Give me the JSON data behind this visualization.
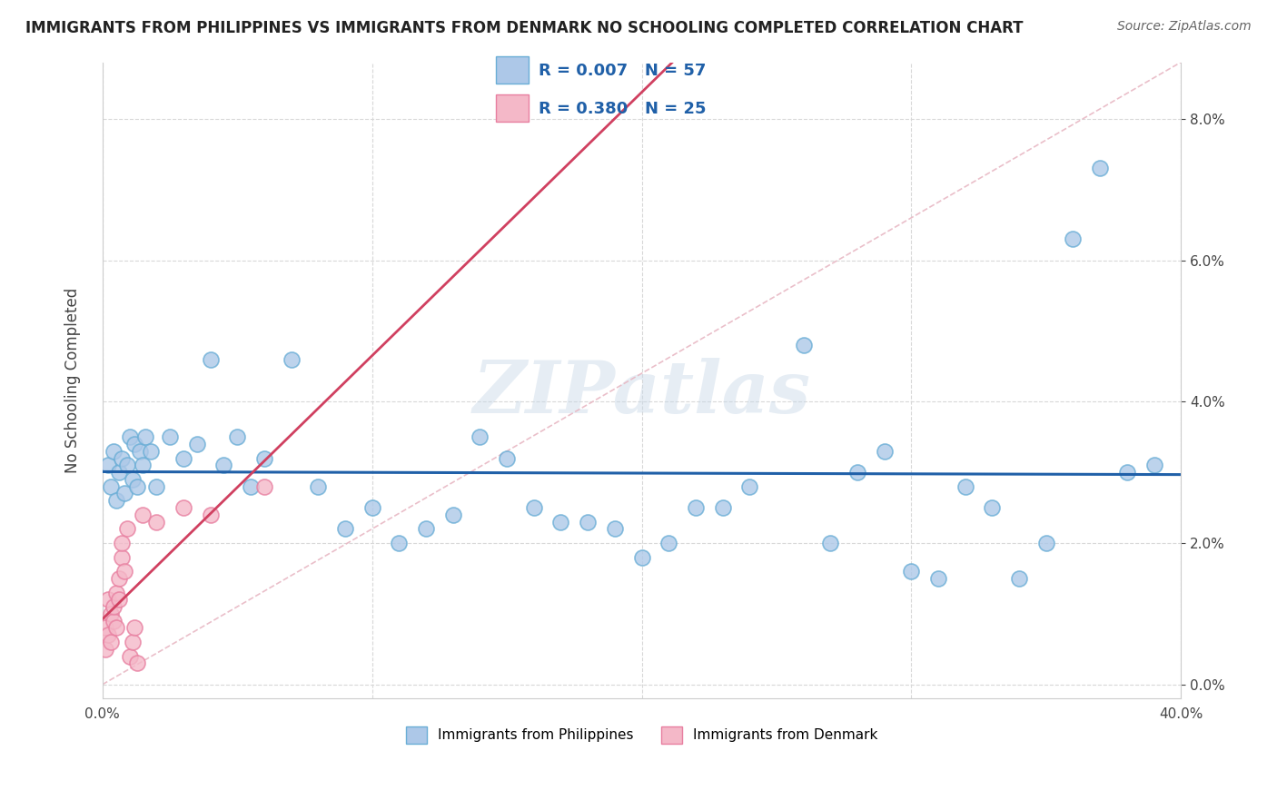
{
  "title": "IMMIGRANTS FROM PHILIPPINES VS IMMIGRANTS FROM DENMARK NO SCHOOLING COMPLETED CORRELATION CHART",
  "source": "Source: ZipAtlas.com",
  "ylabel": "No Schooling Completed",
  "xlim": [
    0.0,
    0.4
  ],
  "ylim": [
    -0.002,
    0.088
  ],
  "xticks": [
    0.0,
    0.1,
    0.2,
    0.3,
    0.4
  ],
  "yticks": [
    0.0,
    0.02,
    0.04,
    0.06,
    0.08
  ],
  "philippines_color": "#adc8e8",
  "philippines_edge": "#6aaed6",
  "denmark_color": "#f4b8c8",
  "denmark_edge": "#e87fa0",
  "philippines_R": 0.007,
  "philippines_N": 57,
  "denmark_R": 0.38,
  "denmark_N": 25,
  "phil_trend_color": "#2060a8",
  "den_trend_color": "#d04060",
  "diag_color": "#c8c0c8",
  "watermark": "ZIPatlas",
  "background_color": "#ffffff",
  "grid_color": "#d8d8d8",
  "legend_R_N_color": "#2060a8",
  "philippines_x": [
    0.002,
    0.003,
    0.004,
    0.005,
    0.006,
    0.007,
    0.008,
    0.009,
    0.01,
    0.011,
    0.012,
    0.013,
    0.014,
    0.015,
    0.016,
    0.018,
    0.02,
    0.025,
    0.03,
    0.035,
    0.04,
    0.045,
    0.05,
    0.055,
    0.06,
    0.07,
    0.08,
    0.09,
    0.1,
    0.11,
    0.12,
    0.13,
    0.14,
    0.15,
    0.16,
    0.17,
    0.18,
    0.19,
    0.2,
    0.21,
    0.22,
    0.23,
    0.24,
    0.26,
    0.27,
    0.28,
    0.29,
    0.3,
    0.31,
    0.32,
    0.33,
    0.34,
    0.35,
    0.36,
    0.37,
    0.38,
    0.39
  ],
  "philippines_y": [
    0.031,
    0.028,
    0.033,
    0.026,
    0.03,
    0.032,
    0.027,
    0.031,
    0.035,
    0.029,
    0.034,
    0.028,
    0.033,
    0.031,
    0.035,
    0.033,
    0.028,
    0.035,
    0.032,
    0.034,
    0.046,
    0.031,
    0.035,
    0.028,
    0.032,
    0.046,
    0.028,
    0.022,
    0.025,
    0.02,
    0.022,
    0.024,
    0.035,
    0.032,
    0.025,
    0.023,
    0.023,
    0.022,
    0.018,
    0.02,
    0.025,
    0.025,
    0.028,
    0.048,
    0.02,
    0.03,
    0.033,
    0.016,
    0.015,
    0.028,
    0.025,
    0.015,
    0.02,
    0.063,
    0.073,
    0.03,
    0.031
  ],
  "denmark_x": [
    0.001,
    0.001,
    0.002,
    0.002,
    0.003,
    0.003,
    0.004,
    0.004,
    0.005,
    0.005,
    0.006,
    0.006,
    0.007,
    0.007,
    0.008,
    0.009,
    0.01,
    0.011,
    0.012,
    0.013,
    0.015,
    0.02,
    0.03,
    0.04,
    0.06
  ],
  "denmark_y": [
    0.008,
    0.005,
    0.012,
    0.007,
    0.01,
    0.006,
    0.009,
    0.011,
    0.008,
    0.013,
    0.015,
    0.012,
    0.018,
    0.02,
    0.016,
    0.022,
    0.004,
    0.006,
    0.008,
    0.003,
    0.024,
    0.023,
    0.025,
    0.024,
    0.028
  ]
}
